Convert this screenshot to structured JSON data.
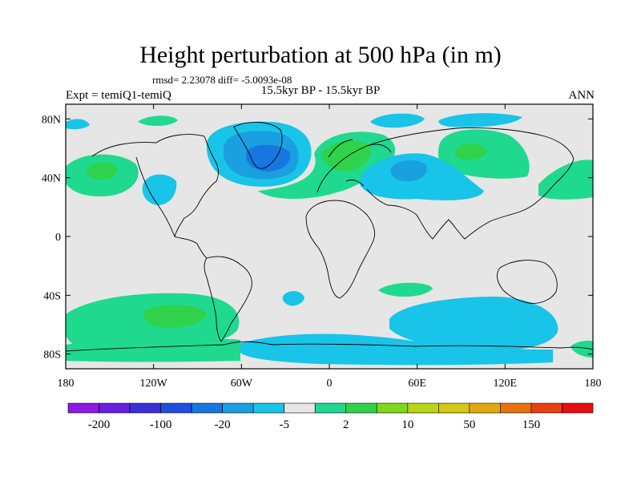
{
  "title": "Height perturbation at 500 hPa (in m)",
  "stats": "rmsd= 2.23078 diff= -5.0093e-08",
  "left_label": "Expt = temiQ1-temiQ",
  "center_label": "15.5kyr BP - 15.5kyr BP",
  "right_label": "ANN",
  "x_ticks": [
    "180",
    "120W",
    "60W",
    "0",
    "60E",
    "120E",
    "180"
  ],
  "y_ticks": [
    "80N",
    "40N",
    "0",
    "40S",
    "80S"
  ],
  "colorbar": {
    "colors": [
      "#8b1ae6",
      "#6a1ee0",
      "#3b2fd8",
      "#1f4fe0",
      "#1677e0",
      "#1a9fe0",
      "#18c4e8",
      "#e6e6e6",
      "#1fd98f",
      "#2fd24a",
      "#7fd81a",
      "#b8d615",
      "#d6c80e",
      "#e6a70e",
      "#e8720e",
      "#e8400e",
      "#e80e0e"
    ],
    "labels": [
      "-200",
      "-100",
      "-20",
      "-5",
      "2",
      "10",
      "50",
      "150"
    ]
  },
  "colors": {
    "background": "#e6e6e6",
    "neg_light": "#18c4e8",
    "neg_mid": "#1a9fe0",
    "neg_strong": "#1677e0",
    "pos_light": "#1fd98f",
    "pos_mid": "#2fd24a"
  }
}
